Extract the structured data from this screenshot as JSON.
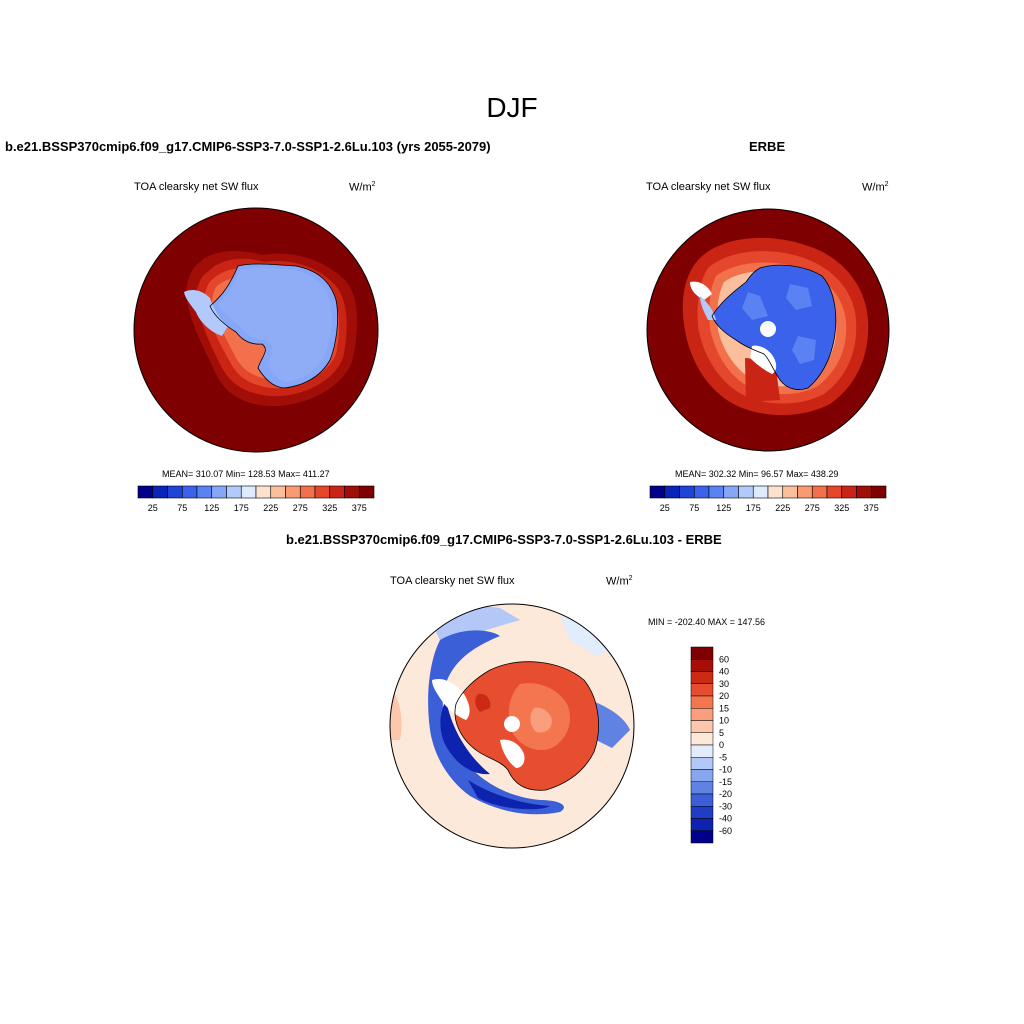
{
  "figure": {
    "title": "DJF"
  },
  "panels": [
    {
      "title": "b.e21.BSSP370cmip6.f09_g17.CMIP6-SSP3-7.0-SSP1-2.6Lu.103 (yrs 2055-2079)",
      "variable": "TOA clearsky net SW flux",
      "units_base": "W/m",
      "units_exp": "2",
      "stats": "MEAN= 310.07  Min= 128.53  Max= 411.27"
    },
    {
      "title": "ERBE",
      "variable": "TOA clearsky net SW flux",
      "units_base": "W/m",
      "units_exp": "2",
      "stats": "MEAN= 302.32  Min=  96.57  Max= 438.29"
    },
    {
      "title": "b.e21.BSSP370cmip6.f09_g17.CMIP6-SSP3-7.0-SSP1-2.6Lu.103 - ERBE",
      "variable": "TOA clearsky net SW flux",
      "units_base": "W/m",
      "units_exp": "2",
      "stats": "MIN = -202.40 MAX = 147.56"
    }
  ],
  "colorbar_abs": {
    "colors": [
      "#00008b",
      "#0a23b8",
      "#1f44d8",
      "#3a62ea",
      "#5a82f2",
      "#86a6f7",
      "#b3c9fb",
      "#deebff",
      "#fde3cf",
      "#fcbf9d",
      "#f99a73",
      "#f2704b",
      "#e4472c",
      "#c92414",
      "#a10e08",
      "#7f0000"
    ],
    "tick_labels": [
      "25",
      "75",
      "125",
      "175",
      "225",
      "275",
      "325",
      "375"
    ]
  },
  "colorbar_diff": {
    "colors": [
      "#7f0000",
      "#a60f08",
      "#cc2a14",
      "#e74e2f",
      "#f3764f",
      "#f99f7d",
      "#fcc7ad",
      "#fde9da",
      "#e1ecfc",
      "#b3c8f6",
      "#88a6ee",
      "#5f82e3",
      "#3a5fd6",
      "#1f3ec5",
      "#0d23ad",
      "#00008b"
    ],
    "tick_labels": [
      "60",
      "40",
      "30",
      "20",
      "15",
      "10",
      "5",
      "0",
      "-5",
      "-10",
      "-15",
      "-20",
      "-30",
      "-40",
      "-60"
    ]
  },
  "chart_data": [
    {
      "type": "heatmap",
      "title": "TOA clearsky net SW flux",
      "dataset": "b.e21.BSSP370cmip6.f09_g17.CMIP6-SSP3-7.0-SSP1-2.6Lu.103 (yrs 2055-2079)",
      "season": "DJF",
      "projection": "south polar stereographic",
      "units": "W/m2",
      "mean": 310.07,
      "min": 128.53,
      "max": 411.27,
      "contour_levels": [
        25,
        50,
        75,
        100,
        125,
        150,
        175,
        200,
        225,
        250,
        275,
        300,
        325,
        350,
        375
      ],
      "region_values": {
        "antarctic_interior": 150,
        "coastal_ice": 200,
        "sea_ice_edge": 290,
        "southern_ocean": 390
      }
    },
    {
      "type": "heatmap",
      "title": "TOA clearsky net SW flux",
      "dataset": "ERBE",
      "season": "DJF",
      "projection": "south polar stereographic",
      "units": "W/m2",
      "mean": 302.32,
      "min": 96.57,
      "max": 438.29,
      "contour_levels": [
        25,
        50,
        75,
        100,
        125,
        150,
        175,
        200,
        225,
        250,
        275,
        300,
        325,
        350,
        375
      ],
      "region_values": {
        "antarctic_interior": 115,
        "coastal_ice": 200,
        "sea_ice_edge": 300,
        "southern_ocean": 400
      }
    },
    {
      "type": "heatmap",
      "title": "TOA clearsky net SW flux",
      "dataset": "b.e21.BSSP370cmip6.f09_g17.CMIP6-SSP3-7.0-SSP1-2.6Lu.103 - ERBE",
      "season": "DJF",
      "projection": "south polar stereographic",
      "units": "W/m2",
      "min": -202.4,
      "max": 147.56,
      "contour_levels": [
        -60,
        -40,
        -30,
        -20,
        -15,
        -10,
        -5,
        0,
        5,
        10,
        15,
        20,
        30,
        40,
        60
      ],
      "region_values": {
        "antarctic_interior": 35,
        "sea_ice_zone": -45,
        "southern_ocean": 3
      }
    }
  ]
}
